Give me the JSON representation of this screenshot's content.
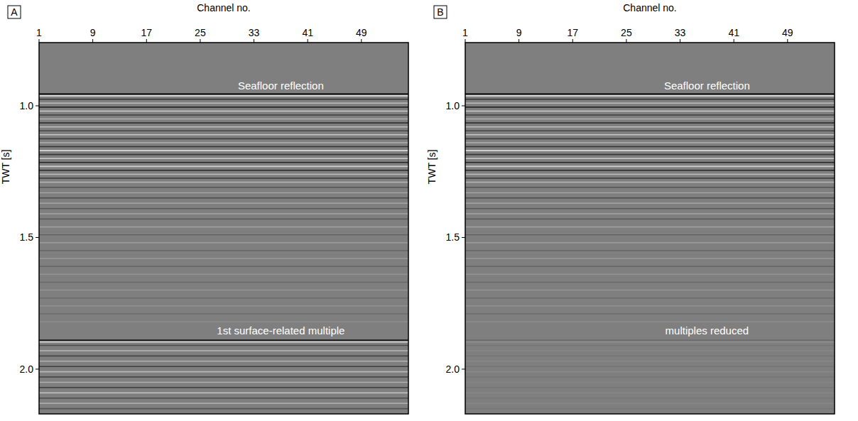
{
  "chart_data": [
    {
      "type": "seismic",
      "label": "A",
      "xlabel": "Channel no.",
      "ylabel": "TWT [s]",
      "xlim": [
        1,
        56
      ],
      "xticks": [
        1,
        9,
        17,
        25,
        33,
        41,
        49
      ],
      "ylim": [
        0.76,
        2.17
      ],
      "yticks": [
        {
          "value": 1.0,
          "label": "1.0"
        },
        {
          "value": 1.5,
          "label": "1.5"
        },
        {
          "value": 2.0,
          "label": "2.0"
        }
      ],
      "annotations": [
        {
          "text": "Seafloor reflection",
          "x": 37,
          "y": 0.925
        },
        {
          "text": "1st surface-related multiple",
          "x": 37,
          "y": 1.855
        }
      ],
      "reflectors": {
        "twt": [
          0.955,
          0.962,
          0.975,
          0.99,
          1.005,
          1.02,
          1.035,
          1.05,
          1.065,
          1.08,
          1.095,
          1.11,
          1.125,
          1.14,
          1.155,
          1.17,
          1.185,
          1.2,
          1.215,
          1.23,
          1.245,
          1.26,
          1.275,
          1.29,
          1.31,
          1.33,
          1.35,
          1.37,
          1.39,
          1.41,
          1.43,
          1.46,
          1.49,
          1.52,
          1.55,
          1.58,
          1.61,
          1.64,
          1.67,
          1.7,
          1.73,
          1.76,
          1.79,
          1.82,
          1.89,
          1.897,
          1.91,
          1.93,
          1.95,
          1.97,
          1.99,
          2.01,
          2.03,
          2.05,
          2.07,
          2.09,
          2.11,
          2.13,
          2.15
        ],
        "amplitude": [
          -1,
          0.9,
          -0.6,
          0.5,
          -0.7,
          0.6,
          -0.5,
          0.4,
          -0.6,
          0.5,
          -0.45,
          0.55,
          -0.5,
          0.4,
          -0.6,
          0.7,
          -0.55,
          0.6,
          -0.7,
          0.65,
          -0.6,
          0.5,
          -0.55,
          0.4,
          -0.35,
          0.3,
          -0.35,
          0.3,
          -0.3,
          0.25,
          -0.3,
          0.25,
          -0.22,
          0.2,
          -0.22,
          0.18,
          -0.2,
          0.15,
          -0.18,
          0.15,
          -0.15,
          0.12,
          -0.14,
          0.12,
          -0.8,
          0.7,
          -0.4,
          0.45,
          -0.45,
          0.4,
          -0.5,
          0.45,
          -0.5,
          0.4,
          -0.45,
          0.5,
          -0.4,
          0.35,
          -0.35
        ]
      }
    },
    {
      "type": "seismic",
      "label": "B",
      "xlabel": "Channel no.",
      "ylabel": "TWT [s]",
      "xlim": [
        1,
        56
      ],
      "xticks": [
        1,
        9,
        17,
        25,
        33,
        41,
        49
      ],
      "ylim": [
        0.76,
        2.17
      ],
      "yticks": [
        {
          "value": 1.0,
          "label": "1.0"
        },
        {
          "value": 1.5,
          "label": "1.5"
        },
        {
          "value": 2.0,
          "label": "2.0"
        }
      ],
      "annotations": [
        {
          "text": "Seafloor reflection",
          "x": 37,
          "y": 0.925
        },
        {
          "text": "multiples reduced",
          "x": 37,
          "y": 1.855
        }
      ],
      "reflectors": {
        "twt": [
          0.955,
          0.962,
          0.975,
          0.99,
          1.005,
          1.02,
          1.035,
          1.05,
          1.065,
          1.08,
          1.095,
          1.11,
          1.125,
          1.14,
          1.155,
          1.17,
          1.185,
          1.2,
          1.215,
          1.23,
          1.245,
          1.26,
          1.275,
          1.29,
          1.31,
          1.33,
          1.35,
          1.37,
          1.39,
          1.41,
          1.43,
          1.46,
          1.49,
          1.52,
          1.55,
          1.58,
          1.61,
          1.64,
          1.67,
          1.7,
          1.73,
          1.76,
          1.79,
          1.82,
          1.89,
          1.897,
          1.91,
          1.93,
          1.95,
          1.97,
          1.99,
          2.01,
          2.03,
          2.05,
          2.07,
          2.09,
          2.11,
          2.13,
          2.15
        ],
        "amplitude": [
          -1,
          0.9,
          -0.6,
          0.5,
          -0.7,
          0.6,
          -0.5,
          0.4,
          -0.6,
          0.5,
          -0.45,
          0.55,
          -0.5,
          0.4,
          -0.6,
          0.7,
          -0.55,
          0.6,
          -0.7,
          0.65,
          -0.6,
          0.5,
          -0.55,
          0.4,
          -0.35,
          0.3,
          -0.35,
          0.3,
          -0.3,
          0.25,
          -0.3,
          0.25,
          -0.22,
          0.2,
          -0.22,
          0.18,
          -0.2,
          0.15,
          -0.18,
          0.15,
          -0.15,
          0.12,
          -0.14,
          0.12,
          -0.15,
          0.12,
          -0.08,
          0.08,
          -0.08,
          0.07,
          -0.08,
          0.07,
          -0.08,
          0.06,
          -0.07,
          0.07,
          -0.06,
          0.06,
          -0.06
        ]
      }
    }
  ]
}
